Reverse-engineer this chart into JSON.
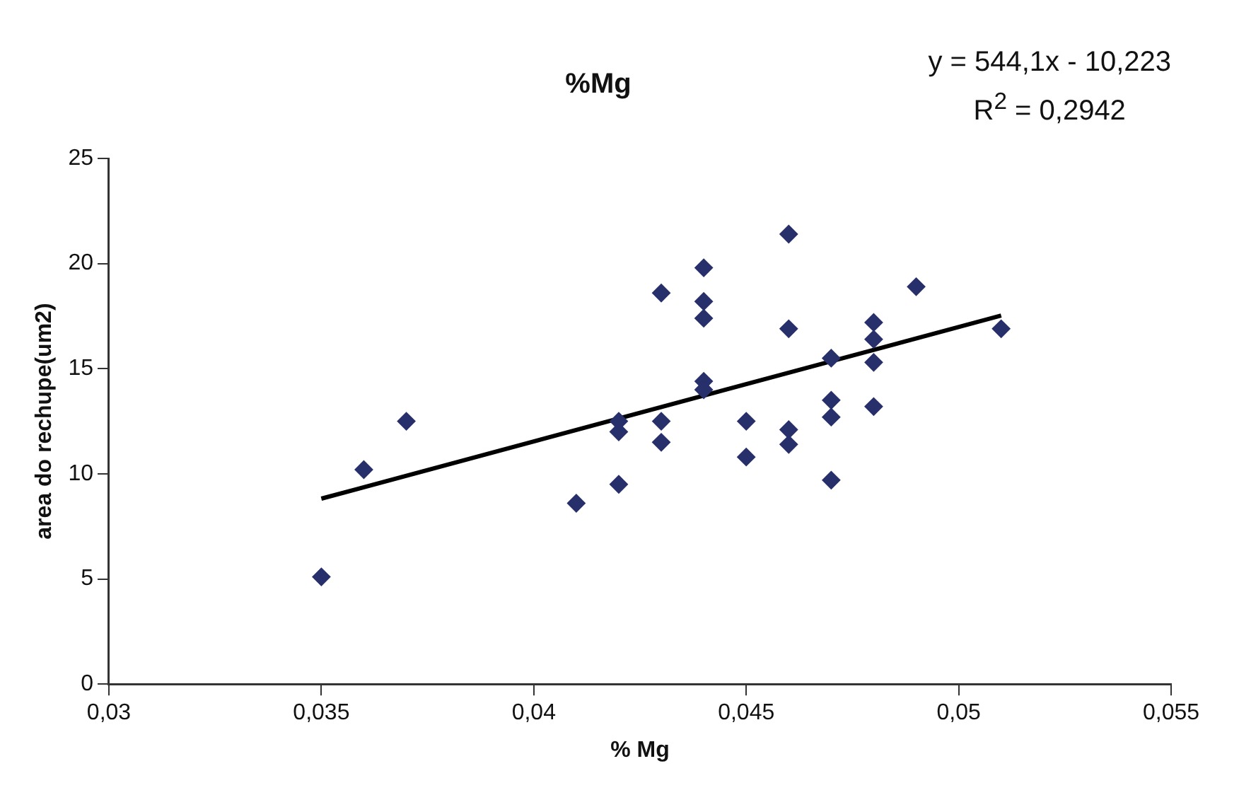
{
  "chart_data": {
    "type": "scatter",
    "title": "%Mg",
    "xlabel": "% Mg",
    "ylabel": "area do rechupe(um2)",
    "annotations": [
      "y = 544,1x - 10,223",
      "R$^{2}$ = 0,2942"
    ],
    "xlim": [
      0.03,
      0.055
    ],
    "xticks": [
      {
        "value": 0.03,
        "label": "0,03"
      },
      {
        "value": 0.035,
        "label": "0,035"
      },
      {
        "value": 0.04,
        "label": "0,04"
      },
      {
        "value": 0.045,
        "label": "0,045"
      },
      {
        "value": 0.05,
        "label": "0,05"
      },
      {
        "value": 0.055,
        "label": "0,055"
      }
    ],
    "ylim": [
      0,
      25
    ],
    "yticks": [
      0,
      5,
      10,
      15,
      20,
      25
    ],
    "grid": false,
    "legend": false,
    "series": [
      {
        "color": "#27306b",
        "marker": "diamond",
        "x": [
          0.035,
          0.036,
          0.037,
          0.041,
          0.042,
          0.042,
          0.042,
          0.043,
          0.043,
          0.043,
          0.044,
          0.044,
          0.044,
          0.044,
          0.044,
          0.045,
          0.045,
          0.046,
          0.046,
          0.046,
          0.046,
          0.047,
          0.047,
          0.047,
          0.047,
          0.048,
          0.048,
          0.048,
          0.048,
          0.049,
          0.051
        ],
        "values": [
          5.1,
          10.2,
          12.5,
          8.6,
          9.5,
          12.5,
          12.0,
          18.6,
          12.5,
          11.5,
          19.8,
          18.2,
          17.4,
          14.4,
          14.0,
          12.5,
          10.8,
          21.4,
          16.9,
          12.1,
          11.4,
          15.5,
          13.5,
          12.7,
          9.7,
          17.2,
          16.4,
          15.3,
          13.2,
          18.9,
          16.9
        ]
      },
      {
        "type": "line",
        "color": "#000000",
        "marker": "none",
        "line_style": "solid",
        "x": [
          0.035,
          0.051
        ],
        "values": [
          8.82,
          17.53
        ]
      }
    ]
  }
}
